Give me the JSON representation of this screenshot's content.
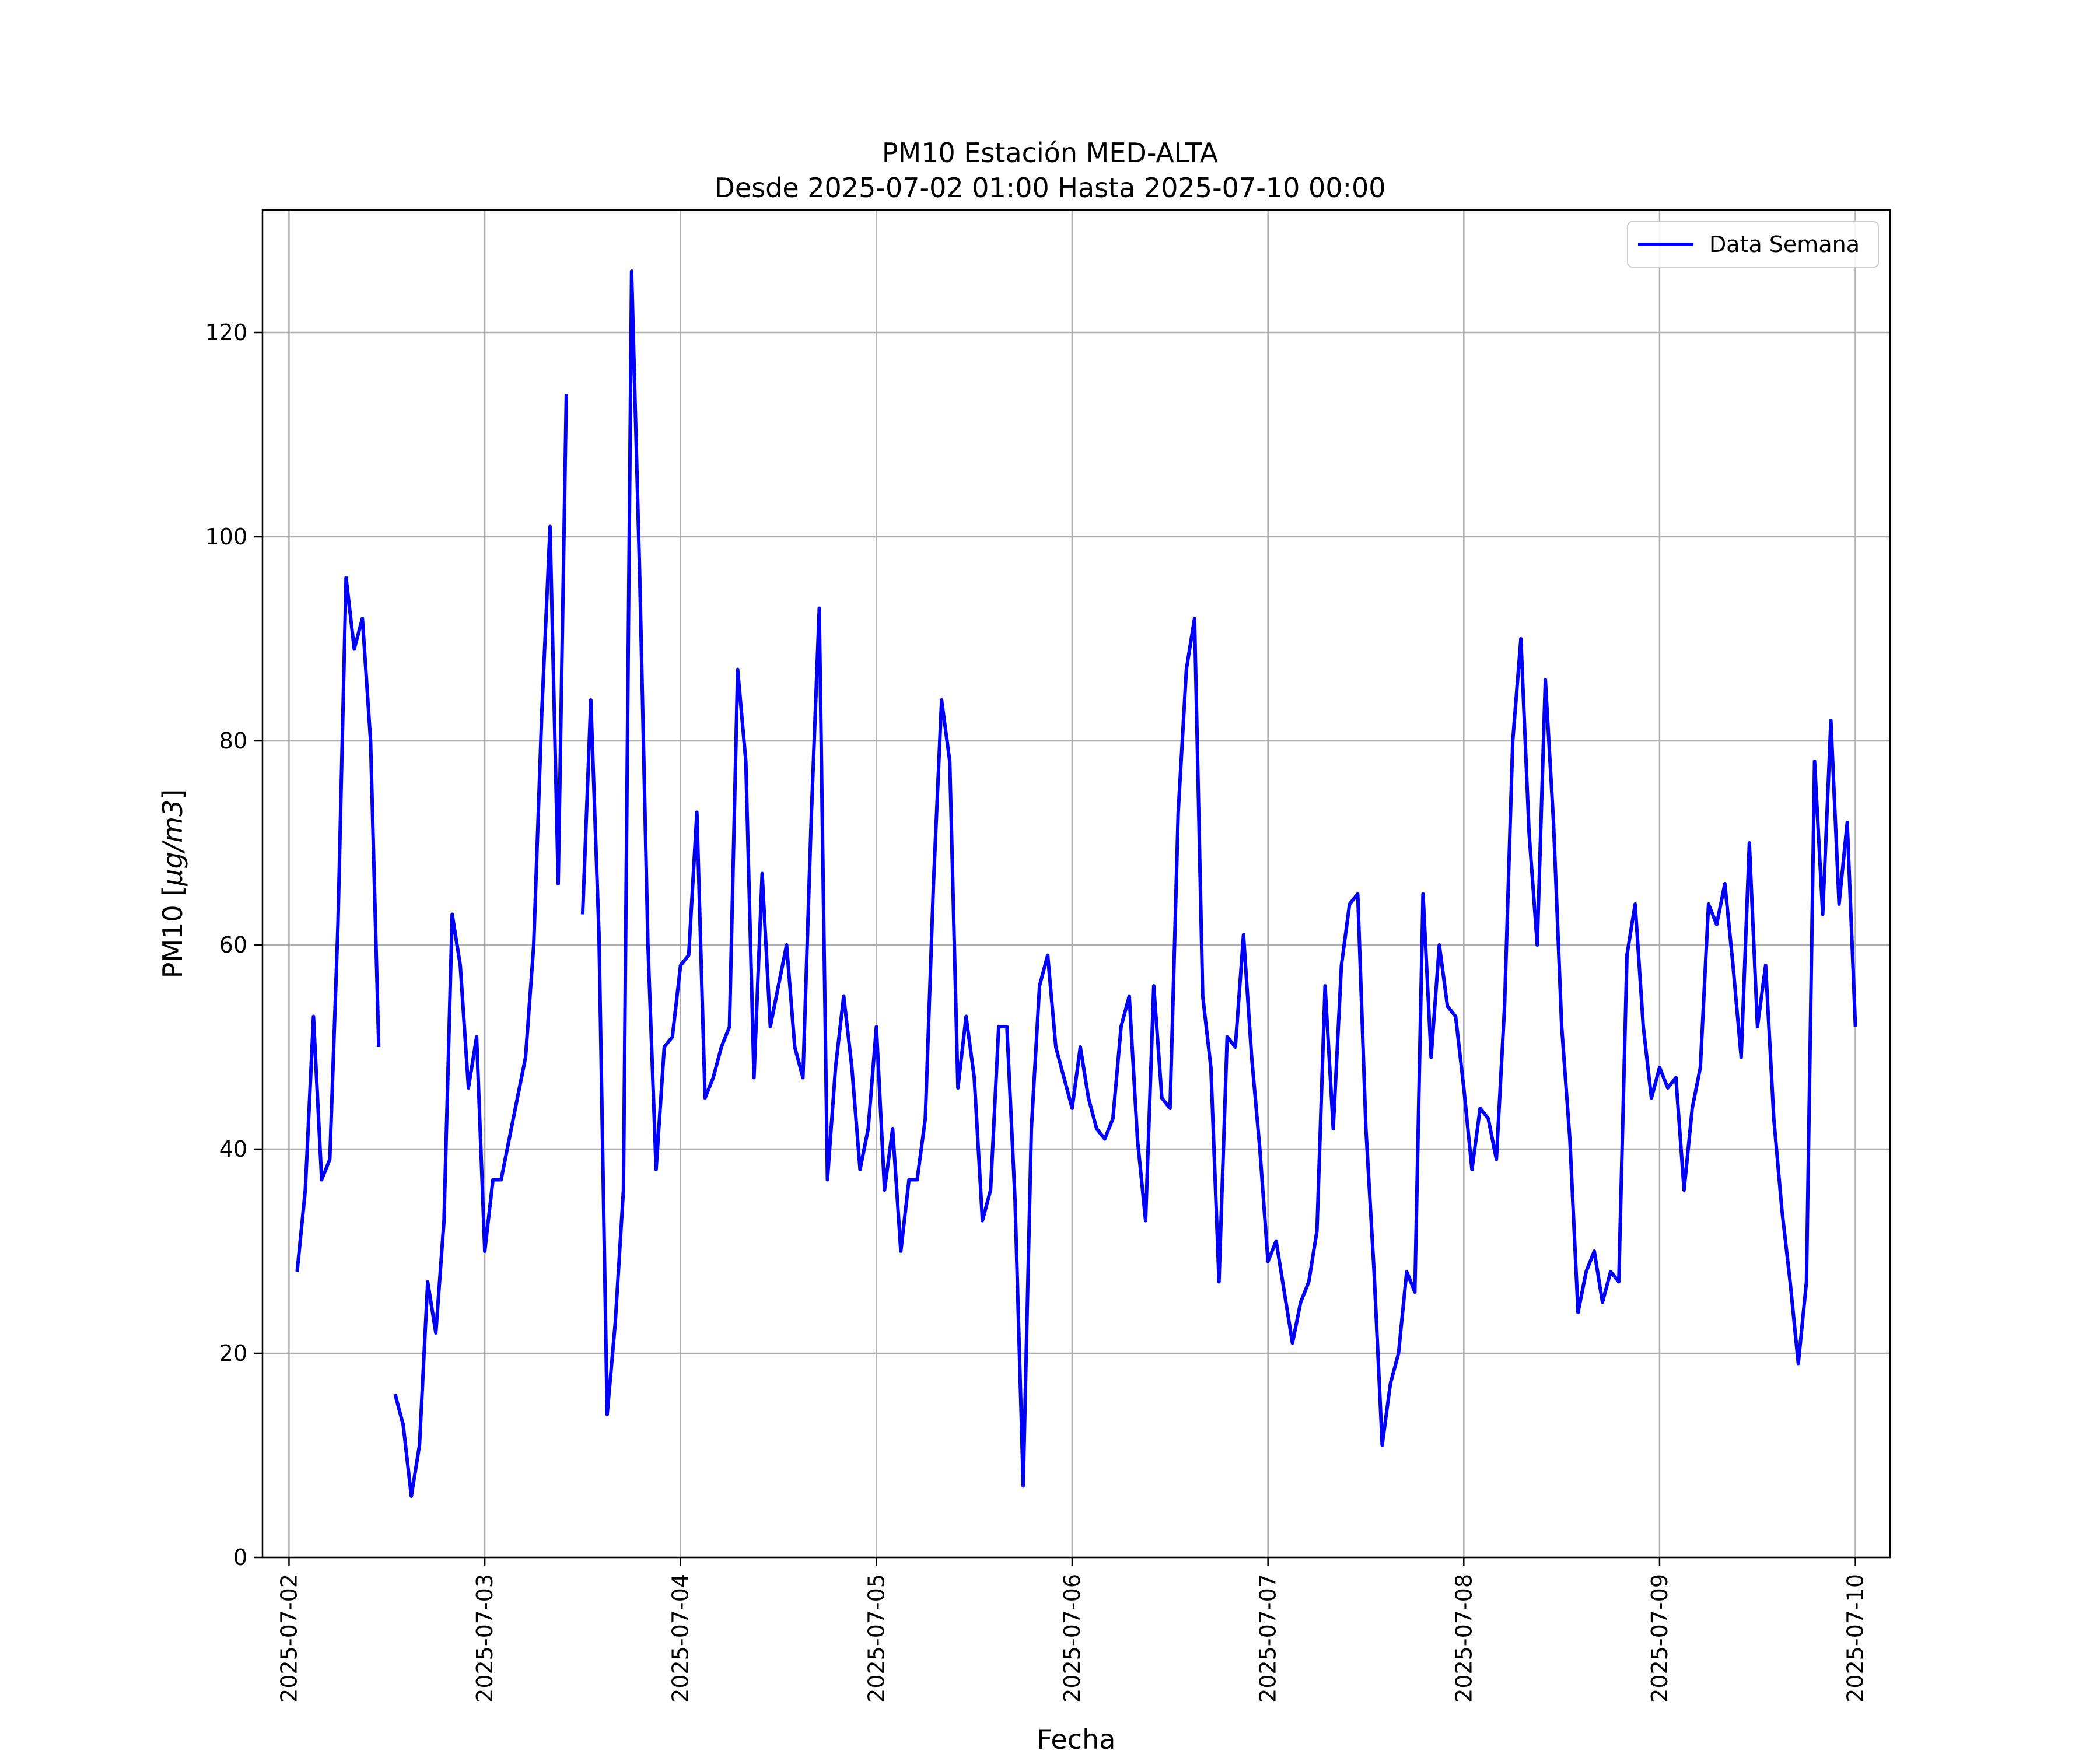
{
  "chart_data": {
    "type": "line",
    "title": "PM10 Estación MED-ALTA",
    "subtitle": "Desde 2025-07-02 01:00 Hasta 2025-07-10 00:00",
    "xlabel": "Fecha",
    "ylabel": "PM10 [μg/m3]",
    "ylabel_prefix": "PM10 [",
    "ylabel_unit": "μg/m3",
    "ylabel_suffix": "]",
    "xlim": [
      "2025-07-01 20:45",
      "2025-07-10 04:15"
    ],
    "ylim": [
      0,
      132
    ],
    "x_ticks": [
      "2025-07-02",
      "2025-07-03",
      "2025-07-04",
      "2025-07-05",
      "2025-07-06",
      "2025-07-07",
      "2025-07-08",
      "2025-07-09",
      "2025-07-10"
    ],
    "y_ticks": [
      0,
      20,
      40,
      60,
      80,
      100,
      120
    ],
    "grid": true,
    "legend": {
      "position": "top-right",
      "entries": [
        "Data Semana"
      ]
    },
    "colors": {
      "series": "#0000ff",
      "grid": "#b0b0b0",
      "frame": "#000000"
    },
    "series": [
      {
        "name": "Data Semana",
        "start": "2025-07-02 01:00",
        "step_hours": 1,
        "values": [
          28,
          36,
          53,
          37,
          39,
          62,
          96,
          89,
          92,
          80,
          50,
          null,
          16,
          13,
          6,
          11,
          27,
          22,
          33,
          63,
          58,
          46,
          51,
          30,
          37,
          37,
          41,
          45,
          49,
          60,
          83,
          101,
          66,
          114,
          null,
          63,
          84,
          61,
          14,
          23,
          36,
          126,
          96,
          60,
          38,
          50,
          51,
          58,
          59,
          73,
          45,
          47,
          50,
          52,
          87,
          78,
          47,
          67,
          52,
          56,
          60,
          50,
          47,
          72,
          93,
          37,
          48,
          55,
          48,
          38,
          42,
          52,
          36,
          42,
          30,
          37,
          37,
          43,
          66,
          84,
          78,
          46,
          53,
          47,
          33,
          36,
          52,
          52,
          35,
          7,
          42,
          56,
          59,
          50,
          47,
          44,
          50,
          45,
          42,
          41,
          43,
          52,
          55,
          41,
          33,
          56,
          45,
          44,
          73,
          87,
          92,
          55,
          48,
          27,
          51,
          50,
          61,
          49,
          40,
          29,
          31,
          26,
          21,
          25,
          27,
          32,
          56,
          42,
          58,
          64,
          65,
          42,
          28,
          11,
          17,
          20,
          28,
          26,
          65,
          49,
          60,
          54,
          53,
          46,
          38,
          44,
          43,
          39,
          54,
          80,
          90,
          71,
          60,
          86,
          72,
          52,
          41,
          24,
          28,
          30,
          25,
          28,
          27,
          59,
          64,
          52,
          45,
          48,
          46,
          47,
          36,
          44,
          48,
          64,
          62,
          66,
          58,
          49,
          70,
          52,
          58,
          43,
          34,
          27,
          19,
          27,
          78,
          63,
          82,
          64,
          72,
          52
        ]
      }
    ]
  }
}
